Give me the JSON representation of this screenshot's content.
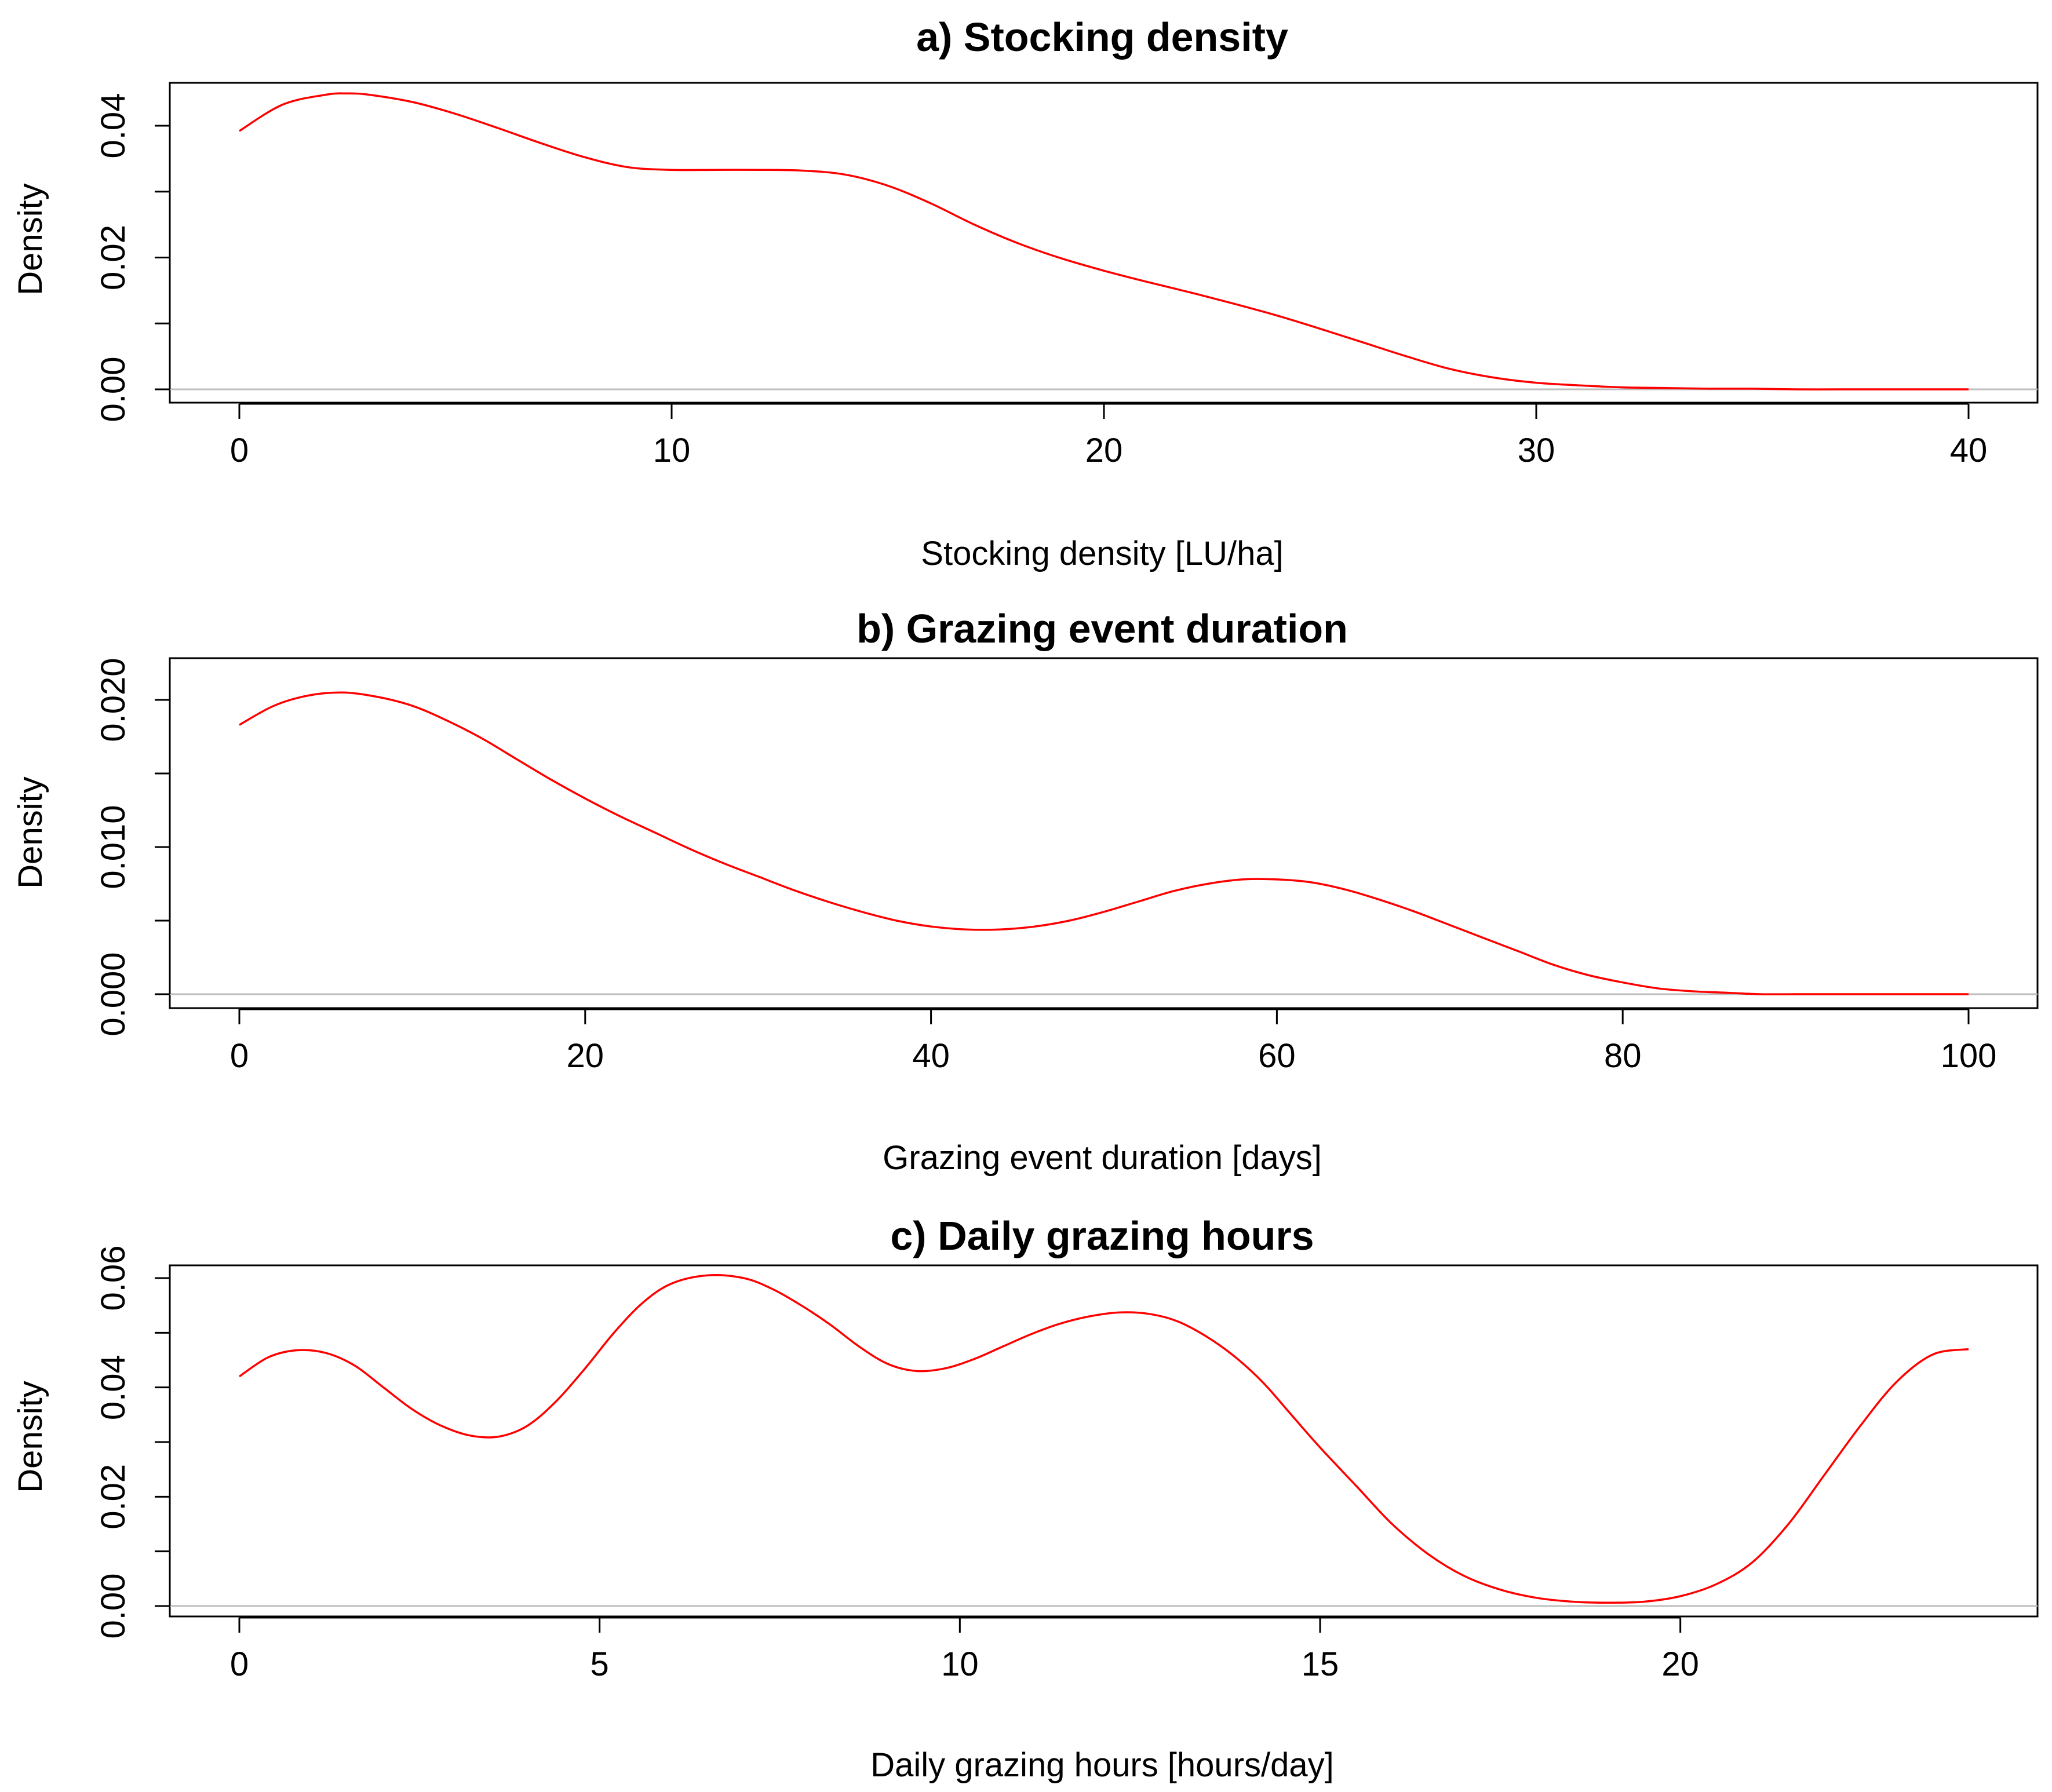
{
  "chart_data": [
    {
      "type": "line",
      "title": "a) Stocking density",
      "xlabel": "Stocking density [LU/ha]",
      "ylabel": "Density",
      "xlim": [
        0,
        40
      ],
      "ylim": [
        0,
        0.04
      ],
      "xticks": [
        0,
        10,
        20,
        30,
        40
      ],
      "xtick_labels": [
        "0",
        "10",
        "20",
        "30",
        "40"
      ],
      "yticks": [
        0,
        0.01,
        0.02,
        0.03,
        0.04
      ],
      "ytick_labels": [
        "0.00",
        "",
        "0.02",
        "",
        "0.04"
      ],
      "baseline": 0,
      "series": [
        {
          "name": "density",
          "color": "#ff0000",
          "x": [
            0,
            1,
            2,
            2.5,
            3,
            4,
            5,
            6,
            7,
            8,
            9,
            10,
            11,
            12,
            13,
            14,
            15,
            16,
            17,
            18,
            19,
            20,
            21,
            22,
            23,
            24,
            25,
            26,
            27,
            28,
            29,
            30,
            31,
            32,
            33,
            34,
            35,
            36,
            37,
            38,
            39,
            40
          ],
          "y": [
            0.0392,
            0.0432,
            0.0447,
            0.0449,
            0.0447,
            0.0436,
            0.0418,
            0.0396,
            0.0373,
            0.0352,
            0.0337,
            0.0333,
            0.0333,
            0.0333,
            0.0332,
            0.0326,
            0.0309,
            0.0282,
            0.025,
            0.0222,
            0.0199,
            0.018,
            0.0163,
            0.0147,
            0.013,
            0.0112,
            0.0092,
            0.0071,
            0.005,
            0.0031,
            0.0018,
            0.001,
            0.0006,
            0.0003,
            0.0002,
            0.0001,
            0.0001,
            0.0,
            0.0,
            0.0,
            0.0,
            0.0
          ]
        }
      ]
    },
    {
      "type": "line",
      "title": "b) Grazing event duration",
      "xlabel": "Grazing event duration [days]",
      "ylabel": "Density",
      "xlim": [
        0,
        100
      ],
      "ylim": [
        0,
        0.02
      ],
      "xticks": [
        0,
        20,
        40,
        60,
        80,
        100
      ],
      "xtick_labels": [
        "0",
        "20",
        "40",
        "60",
        "80",
        "100"
      ],
      "yticks": [
        0,
        0.005,
        0.01,
        0.015,
        0.02
      ],
      "ytick_labels": [
        "0.000",
        "",
        "0.010",
        "",
        "0.020"
      ],
      "baseline": 0,
      "series": [
        {
          "name": "density",
          "color": "#ff0000",
          "x": [
            0,
            2,
            4,
            6,
            8,
            10,
            12,
            14,
            16,
            18,
            20,
            22,
            24,
            26,
            28,
            30,
            32,
            34,
            36,
            38,
            40,
            42,
            44,
            46,
            48,
            50,
            52,
            54,
            56,
            58,
            60,
            62,
            64,
            66,
            68,
            70,
            72,
            74,
            76,
            78,
            80,
            82,
            84,
            86,
            88,
            90,
            92,
            94,
            96,
            98,
            100
          ],
          "y": [
            0.0183,
            0.0196,
            0.0203,
            0.0205,
            0.0202,
            0.0196,
            0.0186,
            0.0174,
            0.016,
            0.0146,
            0.0133,
            0.0121,
            0.011,
            0.0099,
            0.0089,
            0.008,
            0.0071,
            0.0063,
            0.0056,
            0.005,
            0.0046,
            0.0044,
            0.0044,
            0.0046,
            0.005,
            0.0056,
            0.0063,
            0.007,
            0.0075,
            0.0078,
            0.0078,
            0.0076,
            0.0071,
            0.0064,
            0.0056,
            0.0047,
            0.0038,
            0.0029,
            0.002,
            0.0013,
            0.0008,
            0.0004,
            0.0002,
            0.0001,
            0.0,
            0.0,
            0.0,
            0.0,
            0.0,
            0.0,
            0.0
          ]
        }
      ]
    },
    {
      "type": "line",
      "title": "c) Daily grazing hours",
      "xlabel": "Daily grazing hours [hours/day]",
      "ylabel": "Density",
      "xlim": [
        0,
        24
      ],
      "ylim": [
        0,
        0.06
      ],
      "xticks": [
        0,
        5,
        10,
        15,
        20
      ],
      "xtick_labels": [
        "0",
        "5",
        "10",
        "15",
        "20"
      ],
      "yticks": [
        0,
        0.01,
        0.02,
        0.03,
        0.04,
        0.05,
        0.06
      ],
      "ytick_labels": [
        "0.00",
        "",
        "0.02",
        "",
        "0.04",
        "",
        "0.06"
      ],
      "baseline": 0,
      "series": [
        {
          "name": "density",
          "color": "#ff0000",
          "x": [
            0,
            0.4,
            0.8,
            1.2,
            1.6,
            2.0,
            2.4,
            2.8,
            3.2,
            3.6,
            4.0,
            4.4,
            4.8,
            5.2,
            5.6,
            6.0,
            6.5,
            7.0,
            7.4,
            7.8,
            8.2,
            8.6,
            9.0,
            9.4,
            9.8,
            10.2,
            10.6,
            11.0,
            11.4,
            11.8,
            12.2,
            12.6,
            13.0,
            13.4,
            13.8,
            14.2,
            14.6,
            15.0,
            15.5,
            16.0,
            16.5,
            17.0,
            17.5,
            18.0,
            18.5,
            19.0,
            19.5,
            20.0,
            20.5,
            21.0,
            21.5,
            22.0,
            22.5,
            23.0,
            23.5,
            24.0
          ],
          "y": [
            0.042,
            0.0455,
            0.0468,
            0.0463,
            0.044,
            0.04,
            0.036,
            0.033,
            0.0312,
            0.031,
            0.033,
            0.0375,
            0.0435,
            0.05,
            0.0555,
            0.059,
            0.0605,
            0.06,
            0.058,
            0.055,
            0.0515,
            0.0475,
            0.0443,
            0.043,
            0.0435,
            0.0452,
            0.0475,
            0.0498,
            0.0517,
            0.053,
            0.0537,
            0.0535,
            0.0522,
            0.0495,
            0.0458,
            0.041,
            0.035,
            0.029,
            0.022,
            0.015,
            0.0095,
            0.0055,
            0.003,
            0.0015,
            0.0008,
            0.0006,
            0.0008,
            0.0018,
            0.004,
            0.008,
            0.015,
            0.024,
            0.033,
            0.041,
            0.046,
            0.047
          ]
        }
      ]
    }
  ]
}
